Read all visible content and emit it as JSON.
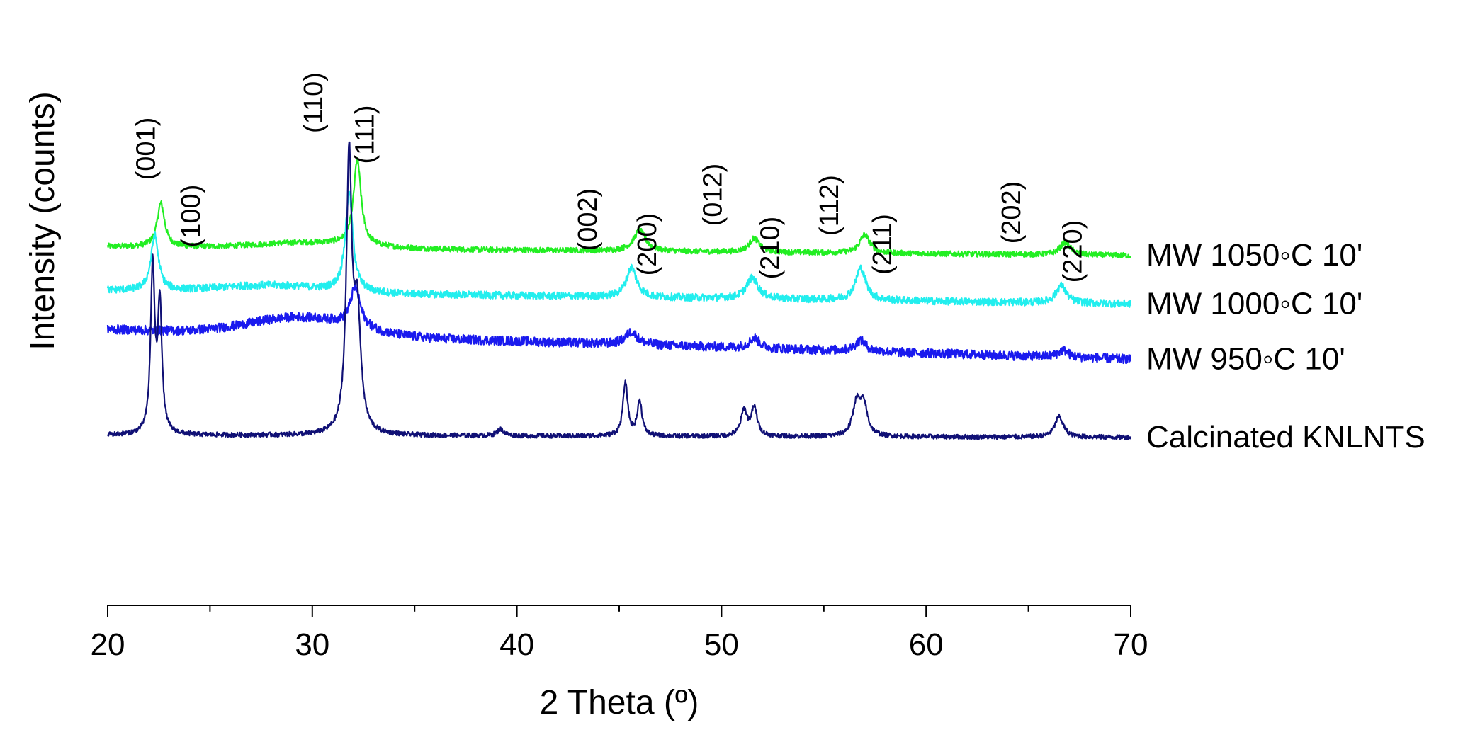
{
  "chart_data": {
    "type": "line",
    "title": "",
    "xlabel": "2 Theta (º)",
    "ylabel": "Intensity (counts)",
    "xlim": [
      20,
      70
    ],
    "xticks": [
      20,
      30,
      40,
      50,
      60,
      70
    ],
    "xtick_labels": [
      "20",
      "30",
      "40",
      "50",
      "60",
      "70"
    ],
    "ylim": [
      0,
      1000
    ],
    "grid": false,
    "peak_labels": [
      {
        "text": "(001)",
        "x": 22.3
      },
      {
        "text": "(100)",
        "x": 24.5
      },
      {
        "text": "(110)",
        "x": 30.5
      },
      {
        "text": "(111)",
        "x": 33.0
      },
      {
        "text": "(002)",
        "x": 43.9
      },
      {
        "text": "(200)",
        "x": 46.8
      },
      {
        "text": "(012)",
        "x": 50.0
      },
      {
        "text": "(210)",
        "x": 52.8
      },
      {
        "text": "(112)",
        "x": 55.7
      },
      {
        "text": "(211)",
        "x": 58.3
      },
      {
        "text": "(202)",
        "x": 64.6
      },
      {
        "text": "(220)",
        "x": 67.6
      }
    ],
    "series": [
      {
        "name": "MW 1050°C 10'",
        "label": "MW 1050◦C 10'",
        "color": "#22ee22",
        "baseline": 680,
        "end_level": 660,
        "noise": 6,
        "hump": {
          "center": 30,
          "width": 3.5,
          "height": 12
        },
        "peaks": [
          {
            "x": 22.6,
            "height": 95,
            "width": 0.22
          },
          {
            "x": 32.2,
            "height": 185,
            "width": 0.22
          },
          {
            "x": 46.0,
            "height": 45,
            "width": 0.35
          },
          {
            "x": 51.6,
            "height": 30,
            "width": 0.3
          },
          {
            "x": 57.0,
            "height": 40,
            "width": 0.3
          },
          {
            "x": 66.8,
            "height": 28,
            "width": 0.3
          }
        ]
      },
      {
        "name": "MW 1000°C 10'",
        "label": "MW 1000◦C 10'",
        "color": "#22eeee",
        "baseline": 585,
        "end_level": 555,
        "noise": 8,
        "hump": {
          "center": 28,
          "width": 3.5,
          "height": 15
        },
        "peaks": [
          {
            "x": 22.3,
            "height": 120,
            "width": 0.22
          },
          {
            "x": 31.8,
            "height": 215,
            "width": 0.22
          },
          {
            "x": 45.6,
            "height": 65,
            "width": 0.3
          },
          {
            "x": 51.5,
            "height": 45,
            "width": 0.35
          },
          {
            "x": 56.8,
            "height": 70,
            "width": 0.3
          },
          {
            "x": 66.6,
            "height": 38,
            "width": 0.3
          }
        ]
      },
      {
        "name": "MW 950°C 10'",
        "label": "MW 950◦C 10'",
        "color": "#1a1aee",
        "baseline": 500,
        "end_level": 435,
        "noise": 10,
        "hump": {
          "center": 29.5,
          "width": 3.5,
          "height": 38
        },
        "peaks": [
          {
            "x": 32.1,
            "height": 85,
            "width": 0.3
          },
          {
            "x": 45.6,
            "height": 28,
            "width": 0.35
          },
          {
            "x": 51.6,
            "height": 22,
            "width": 0.3
          },
          {
            "x": 56.8,
            "height": 24,
            "width": 0.3
          },
          {
            "x": 66.7,
            "height": 15,
            "width": 0.3
          }
        ]
      },
      {
        "name": "Calcinated KNLNTS",
        "label": "Calcinated KNLNTS",
        "color": "#101075",
        "baseline": 270,
        "end_level": 265,
        "noise": 5,
        "hump": {
          "center": 30,
          "width": 3,
          "height": 0
        },
        "peaks": [
          {
            "x": 22.2,
            "height": 360,
            "width": 0.12
          },
          {
            "x": 22.55,
            "height": 280,
            "width": 0.12
          },
          {
            "x": 31.8,
            "height": 590,
            "width": 0.16
          },
          {
            "x": 32.2,
            "height": 250,
            "width": 0.2
          },
          {
            "x": 39.2,
            "height": 14,
            "width": 0.2
          },
          {
            "x": 45.3,
            "height": 115,
            "width": 0.14
          },
          {
            "x": 46.0,
            "height": 75,
            "width": 0.14
          },
          {
            "x": 51.1,
            "height": 55,
            "width": 0.18
          },
          {
            "x": 51.6,
            "height": 60,
            "width": 0.18
          },
          {
            "x": 56.6,
            "height": 70,
            "width": 0.22
          },
          {
            "x": 56.95,
            "height": 65,
            "width": 0.22
          },
          {
            "x": 66.5,
            "height": 45,
            "width": 0.25
          }
        ]
      }
    ]
  }
}
